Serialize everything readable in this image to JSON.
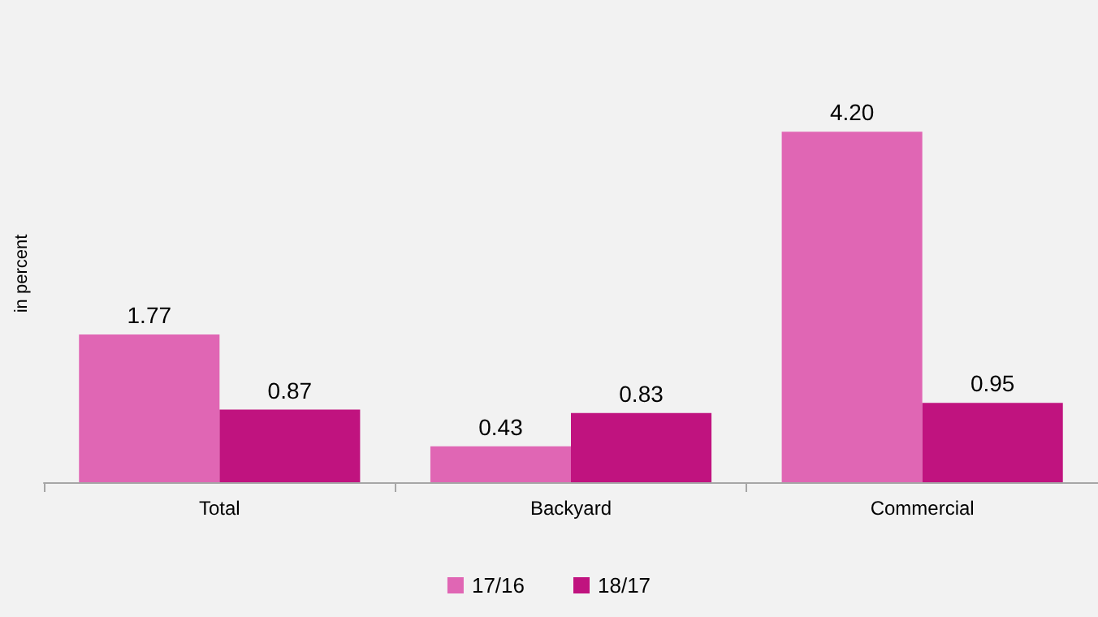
{
  "chart_data": {
    "type": "bar",
    "ylabel": "in percent",
    "categories": [
      "Total",
      "Backyard",
      "Commercial"
    ],
    "series": [
      {
        "name": "17/16",
        "color": "#e066b4",
        "values": [
          1.77,
          0.43,
          4.2
        ],
        "value_labels": [
          "1.77",
          "0.43",
          "4.20"
        ]
      },
      {
        "name": "18/17",
        "color": "#c0137f",
        "values": [
          0.87,
          0.83,
          0.95
        ],
        "value_labels": [
          "0.87",
          "0.83",
          "0.95"
        ]
      }
    ],
    "legend": "bottom",
    "grid": false
  }
}
